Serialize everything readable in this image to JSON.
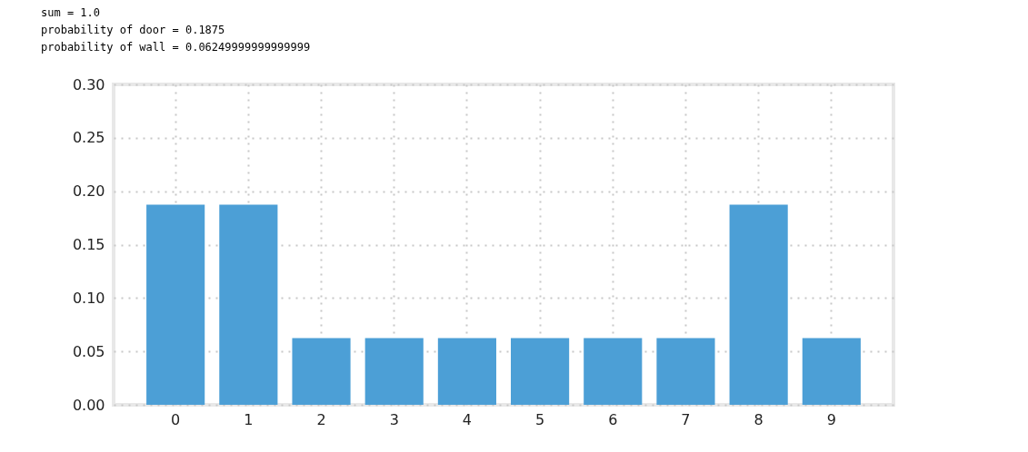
{
  "chart_data": {
    "type": "bar",
    "annotations": [
      "sum = 1.0",
      "probability of door = 0.1875",
      "probability of wall = 0.06249999999999999"
    ],
    "categories": [
      "0",
      "1",
      "2",
      "3",
      "4",
      "5",
      "6",
      "7",
      "8",
      "9"
    ],
    "values": [
      0.1875,
      0.1875,
      0.0625,
      0.0625,
      0.0625,
      0.0625,
      0.0625,
      0.0625,
      0.1875,
      0.0625
    ],
    "color": "#4c9fd6",
    "ylim": [
      0,
      0.3
    ],
    "yticks": [
      {
        "value": 0,
        "label": "0.00"
      },
      {
        "value": 0.05,
        "label": "0.05"
      },
      {
        "value": 0.1,
        "label": "0.10"
      },
      {
        "value": 0.15,
        "label": "0.15"
      },
      {
        "value": 0.2,
        "label": "0.20"
      },
      {
        "value": 0.25,
        "label": "0.25"
      },
      {
        "value": 0.3,
        "label": "0.30"
      }
    ],
    "grid": true
  }
}
